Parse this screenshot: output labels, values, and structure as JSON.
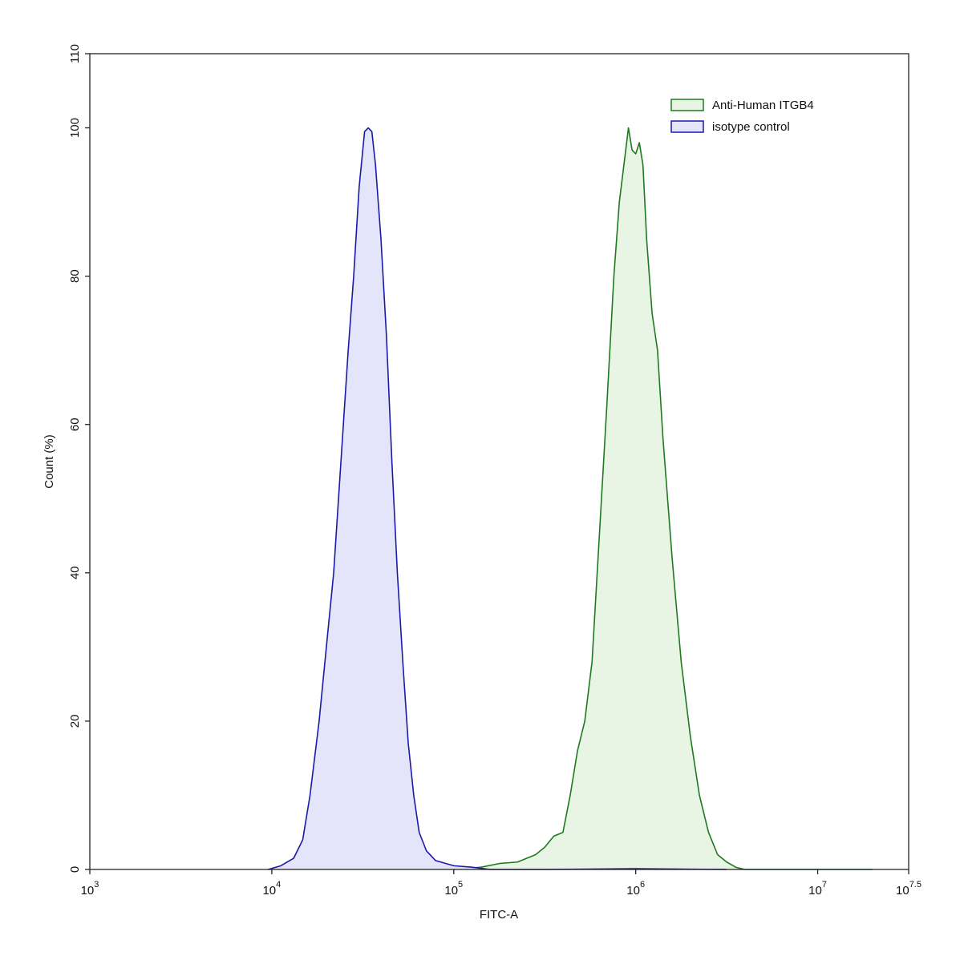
{
  "chart_data": {
    "type": "histogram-overlay",
    "xlabel": "FITC-A",
    "ylabel": "Count  (%)",
    "xlog": true,
    "xlim": [
      1000,
      31622777
    ],
    "xticks": [
      {
        "value": 1000,
        "label": {
          "base": "10",
          "exponent": "3"
        }
      },
      {
        "value": 10000,
        "label": {
          "base": "10",
          "exponent": "4"
        }
      },
      {
        "value": 100000,
        "label": {
          "base": "10",
          "exponent": "5"
        }
      },
      {
        "value": 1000000,
        "label": {
          "base": "10",
          "exponent": "6"
        }
      },
      {
        "value": 10000000,
        "label": {
          "base": "10",
          "exponent": "7"
        }
      },
      {
        "value": 31622777,
        "label": {
          "base": "10",
          "exponent": "7.5"
        }
      }
    ],
    "ylim": [
      0,
      110
    ],
    "yticks": [
      0,
      20,
      40,
      60,
      80,
      100,
      110
    ],
    "legend": "upper right",
    "series": [
      {
        "name": "Anti-Human ITGB4",
        "color": "#1f7a1f",
        "fill": "#e8f5e4",
        "x": [
          100000,
          141300,
          177800,
          223900,
          281800,
          316200,
          354800,
          398100,
          436500,
          478600,
          524800,
          575400,
          631000,
          691800,
          758600,
          812800,
          871000,
          912000,
          955000,
          1000000,
          1047000,
          1096000,
          1148000,
          1230000,
          1318000,
          1413000,
          1585000,
          1778000,
          1995000,
          2239000,
          2512000,
          2818000,
          3162000,
          3548000,
          3981000,
          19950000
        ],
        "values": [
          0,
          0.3,
          0.8,
          1,
          2,
          3,
          4.5,
          5,
          10,
          16,
          20,
          28,
          45,
          62,
          80,
          90,
          96,
          100,
          97,
          96.5,
          98,
          95,
          85,
          75,
          70,
          58,
          42,
          28,
          18,
          10,
          5,
          2,
          1,
          0.3,
          0,
          0
        ]
      },
      {
        "name": "isotype control",
        "color": "#1a1aa6",
        "fill": "#e4e4fa",
        "x": [
          9550,
          11220,
          13180,
          14790,
          16220,
          18200,
          19950,
          21880,
          23990,
          26300,
          28180,
          30200,
          32360,
          33880,
          35480,
          37150,
          39810,
          42660,
          45710,
          48980,
          52480,
          56230,
          60260,
          64570,
          70790,
          79430,
          100000,
          125900,
          158500,
          316200,
          1000000,
          3162000
        ],
        "values": [
          0,
          0.5,
          1.5,
          4,
          10,
          20,
          30,
          40,
          55,
          70,
          80,
          92,
          99.5,
          100,
          99.5,
          95,
          85,
          72,
          55,
          40,
          28,
          17,
          10,
          5,
          2.5,
          1.2,
          0.5,
          0.3,
          0,
          0,
          0.1,
          0
        ]
      }
    ]
  }
}
